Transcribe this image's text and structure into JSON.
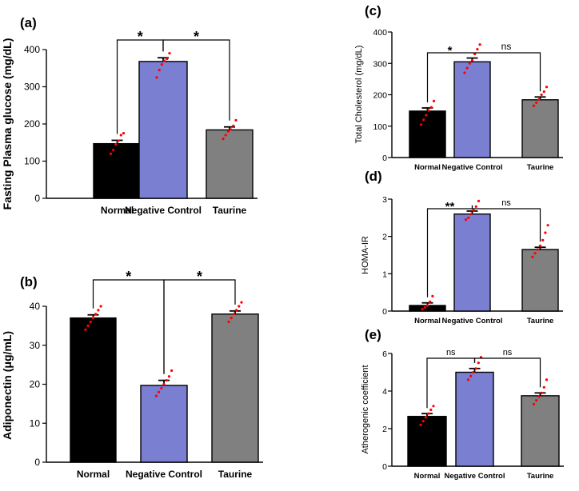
{
  "chart_data": [
    {
      "panel": "(a)",
      "type": "bar",
      "categories": [
        "Normal",
        "Negative Control",
        "Taurine"
      ],
      "values": [
        147,
        368,
        184
      ],
      "errors": [
        9,
        10,
        8
      ],
      "points": [
        [
          120,
          130,
          145,
          155,
          170,
          175
        ],
        [
          325,
          345,
          360,
          370,
          375,
          390
        ],
        [
          160,
          170,
          180,
          185,
          195,
          210
        ]
      ],
      "colors": [
        "#000000",
        "#7b7fd2",
        "#808080"
      ],
      "ylabel": "Fasting Plasma glucose (mg/dL)",
      "ylim": [
        0,
        400
      ],
      "yticks": [
        0,
        100,
        200,
        300,
        400
      ],
      "comparisons": [
        {
          "from": 0,
          "to": 1,
          "label": "*"
        },
        {
          "from": 1,
          "to": 2,
          "label": "*"
        }
      ]
    },
    {
      "panel": "(b)",
      "type": "bar",
      "categories": [
        "Normal",
        "Negative Control",
        "Taurine"
      ],
      "values": [
        37,
        19.7,
        38
      ],
      "errors": [
        0.8,
        1.3,
        0.8
      ],
      "points": [
        [
          34,
          35,
          36,
          37,
          38,
          39,
          40
        ],
        [
          17,
          18,
          19,
          20,
          21,
          22,
          23.5
        ],
        [
          36,
          37,
          38,
          39,
          40,
          41
        ]
      ],
      "colors": [
        "#000000",
        "#7b7fd2",
        "#808080"
      ],
      "ylabel": "Adiponectin (μg/mL)",
      "ylim": [
        0,
        40
      ],
      "yticks": [
        0,
        10,
        20,
        30,
        40
      ],
      "comparisons": [
        {
          "from": 0,
          "to": 1,
          "label": "*"
        },
        {
          "from": 1,
          "to": 2,
          "label": "*"
        }
      ]
    },
    {
      "panel": "(c)",
      "type": "bar",
      "categories": [
        "Normal",
        "Negative Control",
        "Taurine"
      ],
      "values": [
        148,
        305,
        184
      ],
      "errors": [
        10,
        12,
        9
      ],
      "points": [
        [
          105,
          120,
          135,
          150,
          160,
          180
        ],
        [
          270,
          285,
          300,
          310,
          330,
          345,
          360
        ],
        [
          165,
          175,
          185,
          200,
          210,
          225
        ]
      ],
      "colors": [
        "#000000",
        "#7b7fd2",
        "#808080"
      ],
      "ylabel": "Total Cholesterol (mg/dL)",
      "ylim": [
        0,
        400
      ],
      "yticks": [
        0,
        100,
        200,
        300,
        400
      ],
      "comparisons": [
        {
          "from": 0,
          "to": 1,
          "label": "*"
        },
        {
          "from": 1,
          "to": 2,
          "label": "ns"
        }
      ]
    },
    {
      "panel": "(d)",
      "type": "bar",
      "categories": [
        "Normal",
        "Negative Control",
        "Taurine"
      ],
      "values": [
        0.15,
        2.6,
        1.65
      ],
      "errors": [
        0.07,
        0.08,
        0.06
      ],
      "points": [
        [
          0.05,
          0.1,
          0.15,
          0.25,
          0.4
        ],
        [
          2.45,
          2.5,
          2.6,
          2.7,
          2.8,
          2.95
        ],
        [
          1.45,
          1.55,
          1.65,
          1.75,
          1.9,
          2.1,
          2.3
        ]
      ],
      "colors": [
        "#000000",
        "#7b7fd2",
        "#808080"
      ],
      "ylabel": "HOMA-IR",
      "ylim": [
        0,
        3
      ],
      "yticks": [
        0,
        1,
        2,
        3
      ],
      "comparisons": [
        {
          "from": 0,
          "to": 1,
          "label": "**"
        },
        {
          "from": 1,
          "to": 2,
          "label": "ns"
        }
      ]
    },
    {
      "panel": "(e)",
      "type": "bar",
      "categories": [
        "Normal",
        "Negative Control",
        "Taurine"
      ],
      "values": [
        2.65,
        5.0,
        3.75
      ],
      "errors": [
        0.15,
        0.2,
        0.15
      ],
      "points": [
        [
          2.2,
          2.4,
          2.6,
          2.8,
          3.0,
          3.2
        ],
        [
          4.6,
          4.8,
          5.0,
          5.2,
          5.5,
          5.8
        ],
        [
          3.3,
          3.5,
          3.7,
          3.9,
          4.2,
          4.6
        ]
      ],
      "colors": [
        "#000000",
        "#7b7fd2",
        "#808080"
      ],
      "ylabel": "Atherogenic coefficient",
      "ylim": [
        0,
        6
      ],
      "yticks": [
        0,
        2,
        4,
        6
      ],
      "comparisons": [
        {
          "from": 0,
          "to": 1,
          "label": "ns"
        },
        {
          "from": 1,
          "to": 2,
          "label": "ns"
        }
      ]
    }
  ],
  "colors": {
    "dots": "#ff0000",
    "axis": "#000000"
  }
}
